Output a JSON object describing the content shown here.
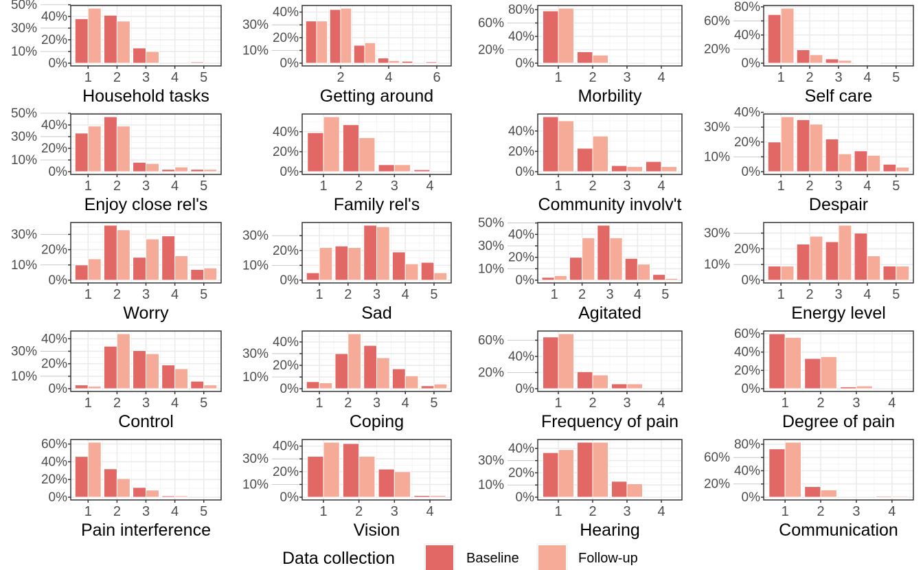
{
  "legend": {
    "title": "Data collection",
    "position": "bottom",
    "items": [
      {
        "label": "Baseline",
        "color": "#E26866"
      },
      {
        "label": "Follow-up",
        "color": "#F6AB98"
      }
    ]
  },
  "chart_data": [
    {
      "type": "bar",
      "title": "Household tasks",
      "categories": [
        1,
        2,
        3,
        4,
        5
      ],
      "x_ticks": [
        1,
        2,
        3,
        4,
        5
      ],
      "y_ticks": [
        0,
        10,
        20,
        30,
        40,
        50
      ],
      "baseline": [
        38,
        41,
        13,
        0,
        1
      ],
      "follow_up": [
        47,
        36,
        10,
        0,
        0
      ]
    },
    {
      "type": "bar",
      "title": "Getting around",
      "categories": [
        1,
        2,
        3,
        4,
        5,
        6
      ],
      "x_ticks": [
        2,
        4,
        6
      ],
      "y_ticks": [
        0,
        10,
        20,
        30,
        40
      ],
      "baseline": [
        33,
        42,
        14,
        4,
        1.5,
        1
      ],
      "follow_up": [
        33,
        43,
        16,
        2,
        0,
        0
      ]
    },
    {
      "type": "bar",
      "title": "Morbility",
      "categories": [
        1,
        2,
        3,
        4
      ],
      "x_ticks": [
        1,
        2,
        3,
        4
      ],
      "y_ticks": [
        0,
        20,
        40,
        60,
        80
      ],
      "baseline": [
        78,
        17,
        0.5,
        0.5
      ],
      "follow_up": [
        82,
        12,
        0,
        0
      ]
    },
    {
      "type": "bar",
      "title": "Self care",
      "categories": [
        1,
        2,
        3,
        4,
        5
      ],
      "x_ticks": [
        1,
        2,
        3,
        4,
        5
      ],
      "y_ticks": [
        0,
        20,
        40,
        60,
        80
      ],
      "baseline": [
        69,
        19,
        6,
        1,
        0
      ],
      "follow_up": [
        78,
        12,
        4,
        1,
        0
      ]
    },
    {
      "type": "bar",
      "title": "Enjoy close rel's",
      "categories": [
        1,
        2,
        3,
        4,
        5
      ],
      "x_ticks": [
        1,
        2,
        3,
        4,
        5
      ],
      "y_ticks": [
        0,
        10,
        20,
        30,
        40,
        50
      ],
      "baseline": [
        33,
        47,
        8,
        2,
        2
      ],
      "follow_up": [
        39,
        39,
        7,
        4,
        2
      ]
    },
    {
      "type": "bar",
      "title": "Family rel's",
      "categories": [
        1,
        2,
        3,
        4
      ],
      "x_ticks": [
        1,
        2,
        3,
        4
      ],
      "y_ticks": [
        0,
        20,
        40
      ],
      "baseline": [
        39,
        47,
        7,
        2
      ],
      "follow_up": [
        55,
        34,
        7,
        0
      ]
    },
    {
      "type": "bar",
      "title": "Community involv't",
      "categories": [
        1,
        2,
        3,
        4
      ],
      "x_ticks": [
        1,
        2,
        3,
        4
      ],
      "y_ticks": [
        0,
        20,
        40
      ],
      "baseline": [
        54,
        23,
        6,
        10
      ],
      "follow_up": [
        50,
        35,
        5,
        5
      ]
    },
    {
      "type": "bar",
      "title": "Despair",
      "categories": [
        1,
        2,
        3,
        4,
        5
      ],
      "x_ticks": [
        1,
        2,
        3,
        4,
        5
      ],
      "y_ticks": [
        0,
        10,
        20,
        30,
        40
      ],
      "baseline": [
        20,
        35,
        22,
        14,
        5
      ],
      "follow_up": [
        37,
        32,
        12,
        11,
        3
      ]
    },
    {
      "type": "bar",
      "title": "Worry",
      "categories": [
        1,
        2,
        3,
        4,
        5
      ],
      "x_ticks": [
        1,
        2,
        3,
        4,
        5
      ],
      "y_ticks": [
        0,
        10,
        20,
        30
      ],
      "baseline": [
        10,
        36,
        15,
        29,
        7
      ],
      "follow_up": [
        14,
        33,
        27,
        16,
        8
      ]
    },
    {
      "type": "bar",
      "title": "Sad",
      "categories": [
        1,
        2,
        3,
        4,
        5
      ],
      "x_ticks": [
        1,
        2,
        3,
        4,
        5
      ],
      "y_ticks": [
        0,
        10,
        20,
        30
      ],
      "baseline": [
        5,
        23,
        37,
        19,
        12
      ],
      "follow_up": [
        22,
        22,
        36,
        11,
        5
      ]
    },
    {
      "type": "bar",
      "title": "Agitated",
      "categories": [
        1,
        2,
        3,
        4,
        5
      ],
      "x_ticks": [
        1,
        2,
        3,
        4,
        5
      ],
      "y_ticks": [
        0,
        10,
        20,
        30,
        40,
        50
      ],
      "baseline": [
        2.5,
        20,
        48,
        19,
        5
      ],
      "follow_up": [
        4,
        37,
        37,
        14,
        1.5
      ]
    },
    {
      "type": "bar",
      "title": "Energy level",
      "categories": [
        1,
        2,
        3,
        4,
        5
      ],
      "x_ticks": [
        1,
        2,
        3,
        4,
        5
      ],
      "y_ticks": [
        0,
        10,
        20,
        30
      ],
      "baseline": [
        9,
        23,
        24.5,
        30,
        9
      ],
      "follow_up": [
        9,
        28,
        35,
        15.5,
        9
      ]
    },
    {
      "type": "bar",
      "title": "Control",
      "categories": [
        1,
        2,
        3,
        4,
        5
      ],
      "x_ticks": [
        1,
        2,
        3,
        4,
        5
      ],
      "y_ticks": [
        0,
        10,
        20,
        30,
        40
      ],
      "baseline": [
        3,
        34,
        30.5,
        19,
        6
      ],
      "follow_up": [
        2,
        44,
        28,
        16,
        3
      ]
    },
    {
      "type": "bar",
      "title": "Coping",
      "categories": [
        1,
        2,
        3,
        4,
        5
      ],
      "x_ticks": [
        1,
        2,
        3,
        4,
        5
      ],
      "y_ticks": [
        0,
        10,
        20,
        30,
        40
      ],
      "baseline": [
        6,
        30,
        37,
        17,
        2.5
      ],
      "follow_up": [
        5,
        47,
        26.5,
        11,
        4
      ]
    },
    {
      "type": "bar",
      "title": "Frequency of pain",
      "categories": [
        1,
        2,
        3,
        4
      ],
      "x_ticks": [
        1,
        2,
        3,
        4
      ],
      "y_ticks": [
        0,
        20,
        40,
        60
      ],
      "baseline": [
        64,
        21,
        6,
        0
      ],
      "follow_up": [
        68,
        17,
        6,
        0
      ]
    },
    {
      "type": "bar",
      "title": "Degree of pain",
      "categories": [
        1,
        2,
        3,
        4
      ],
      "x_ticks": [
        1,
        2,
        3,
        4
      ],
      "y_ticks": [
        0,
        20,
        40,
        60
      ],
      "baseline": [
        60,
        33,
        2,
        0
      ],
      "follow_up": [
        56,
        35,
        3,
        0
      ]
    },
    {
      "type": "bar",
      "title": "Pain interference",
      "categories": [
        1,
        2,
        3,
        4,
        5
      ],
      "x_ticks": [
        1,
        2,
        3,
        4,
        5
      ],
      "y_ticks": [
        0,
        20,
        40,
        60
      ],
      "baseline": [
        46,
        32,
        11,
        1.5,
        0
      ],
      "follow_up": [
        62,
        21,
        8,
        1.5,
        0
      ]
    },
    {
      "type": "bar",
      "title": "Vision",
      "categories": [
        1,
        2,
        3,
        4
      ],
      "x_ticks": [
        1,
        2,
        3,
        4
      ],
      "y_ticks": [
        0,
        10,
        20,
        30,
        40
      ],
      "baseline": [
        32,
        42,
        22,
        1.3
      ],
      "follow_up": [
        43,
        32,
        20,
        1.3
      ]
    },
    {
      "type": "bar",
      "title": "Hearing",
      "categories": [
        1,
        2,
        3,
        4
      ],
      "x_ticks": [
        1,
        2,
        3,
        4
      ],
      "y_ticks": [
        0,
        10,
        20,
        30,
        40
      ],
      "baseline": [
        36.5,
        45,
        13,
        0
      ],
      "follow_up": [
        39,
        45,
        11,
        0
      ]
    },
    {
      "type": "bar",
      "title": "Communication",
      "categories": [
        1,
        2,
        3,
        4
      ],
      "x_ticks": [
        1,
        2,
        3,
        4
      ],
      "y_ticks": [
        0,
        20,
        40,
        60,
        80
      ],
      "baseline": [
        73,
        16,
        0,
        1.5
      ],
      "follow_up": [
        83,
        11,
        0,
        1.5
      ]
    }
  ]
}
